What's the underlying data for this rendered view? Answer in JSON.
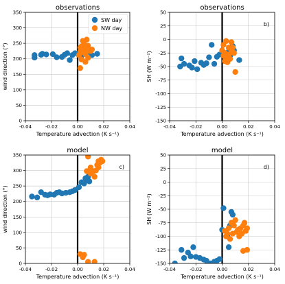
{
  "colors": {
    "sw": "#1f77b4",
    "nw": "#ff7f0e",
    "grid": "#c8c8c8",
    "zero_line": "#000000"
  },
  "chart_data": [
    {
      "type": "scatter",
      "title": "observations",
      "panel_label": "",
      "xlabel": "Temperature advection (K s⁻¹)",
      "ylabel": "wind direction (°)",
      "xlim": [
        -0.04,
        0.04
      ],
      "ylim": [
        0,
        350
      ],
      "xticks": [
        -0.04,
        -0.02,
        0.0,
        0.02,
        0.04
      ],
      "xtick_labels": [
        "-0.04",
        "-0.02",
        "0.00",
        "0.02",
        "0.04"
      ],
      "yticks": [
        0,
        50,
        100,
        150,
        200,
        250,
        300,
        350
      ],
      "ytick_labels": [
        "0",
        "50",
        "100",
        "150",
        "200",
        "250",
        "300",
        "350"
      ],
      "grid": true,
      "legend": {
        "placement": "top-right",
        "entries": [
          "SW day",
          "NW day"
        ]
      },
      "series": [
        {
          "name": "SW day",
          "color_key": "sw",
          "points": [
            [
              -0.033,
              204
            ],
            [
              -0.033,
              212
            ],
            [
              -0.028,
              213
            ],
            [
              -0.027,
              216
            ],
            [
              -0.024,
              214
            ],
            [
              -0.019,
              215
            ],
            [
              -0.016,
              205
            ],
            [
              -0.012,
              206
            ],
            [
              -0.01,
              213
            ],
            [
              -0.008,
              218
            ],
            [
              -0.006,
              196
            ],
            [
              -0.004,
              212
            ],
            [
              -0.002,
              218
            ],
            [
              0.001,
              212
            ],
            [
              0.003,
              208
            ],
            [
              0.004,
              220
            ],
            [
              0.006,
              218
            ],
            [
              0.008,
              222
            ],
            [
              0.01,
              228
            ],
            [
              0.011,
              212
            ],
            [
              0.015,
              216
            ]
          ]
        },
        {
          "name": "NW day",
          "color_key": "nw",
          "points": [
            [
              0.001,
              212
            ],
            [
              0.002,
              225
            ],
            [
              0.002,
              236
            ],
            [
              0.003,
              240
            ],
            [
              0.003,
              198
            ],
            [
              0.004,
              222
            ],
            [
              0.004,
              258
            ],
            [
              0.005,
              238
            ],
            [
              0.005,
              247
            ],
            [
              0.006,
              228
            ],
            [
              0.006,
              215
            ],
            [
              0.007,
              262
            ],
            [
              0.007,
              235
            ],
            [
              0.008,
              242
            ],
            [
              0.008,
              203
            ],
            [
              0.009,
              226
            ],
            [
              0.002,
              170
            ],
            [
              0.01,
              225
            ],
            [
              0.011,
              230
            ],
            [
              0.006,
              190
            ]
          ]
        }
      ]
    },
    {
      "type": "scatter",
      "title": "observations",
      "panel_label": "b)",
      "xlabel": "Temperature advection (K s⁻¹)",
      "ylabel": "SH (W m⁻²)",
      "xlim": [
        -0.04,
        0.04
      ],
      "ylim": [
        -150,
        50
      ],
      "xticks": [
        -0.04,
        -0.02,
        0.0,
        0.02,
        0.04
      ],
      "xtick_labels": [
        "-0.04",
        "-0.02",
        "0.00",
        "0.02",
        "0.04"
      ],
      "yticks": [
        -150,
        -125,
        -100,
        -75,
        -50,
        -25,
        0,
        25,
        50
      ],
      "ytick_labels": [
        "-150",
        "-125",
        "-100",
        "-75",
        "-50",
        "-25",
        "0",
        "25",
        "50"
      ],
      "grid": true,
      "series": [
        {
          "name": "SW day",
          "color_key": "sw",
          "points": [
            [
              -0.032,
              -50
            ],
            [
              -0.031,
              -35
            ],
            [
              -0.029,
              -45
            ],
            [
              -0.025,
              -48
            ],
            [
              -0.023,
              -52
            ],
            [
              -0.021,
              -40
            ],
            [
              -0.019,
              -55
            ],
            [
              -0.016,
              -43
            ],
            [
              -0.014,
              -47
            ],
            [
              -0.012,
              -44
            ],
            [
              -0.01,
              -33
            ],
            [
              -0.008,
              -10
            ],
            [
              -0.006,
              -45
            ],
            [
              -0.004,
              -32
            ],
            [
              -0.002,
              -28
            ],
            [
              0.003,
              -26
            ],
            [
              0.005,
              -22
            ],
            [
              0.006,
              -30
            ],
            [
              0.008,
              -12
            ],
            [
              0.009,
              -20
            ],
            [
              0.013,
              -38
            ]
          ]
        },
        {
          "name": "NW day",
          "color_key": "nw",
          "points": [
            [
              0.0,
              -20
            ],
            [
              0.001,
              -30
            ],
            [
              0.001,
              -10
            ],
            [
              0.002,
              -40
            ],
            [
              0.002,
              -25
            ],
            [
              0.003,
              -35
            ],
            [
              0.003,
              -3
            ],
            [
              0.004,
              -42
            ],
            [
              0.005,
              -15
            ],
            [
              0.005,
              -28
            ],
            [
              0.006,
              -36
            ],
            [
              0.007,
              -20
            ],
            [
              0.007,
              -5
            ],
            [
              0.008,
              -15
            ],
            [
              0.009,
              -25
            ],
            [
              0.01,
              -60
            ]
          ]
        }
      ]
    },
    {
      "type": "scatter",
      "title": "model",
      "panel_label": "c)",
      "xlabel": "Temperature advection (K s⁻¹)",
      "ylabel": "wind direction (°)",
      "xlim": [
        -0.04,
        0.04
      ],
      "ylim": [
        0,
        350
      ],
      "xticks": [
        -0.04,
        -0.02,
        0.0,
        0.02,
        0.04
      ],
      "xtick_labels": [
        "-0.04",
        "-0.02",
        "0.00",
        "0.02",
        "0.04"
      ],
      "yticks": [
        0,
        50,
        100,
        150,
        200,
        250,
        300,
        350
      ],
      "ytick_labels": [
        "0",
        "50",
        "100",
        "150",
        "200",
        "250",
        "300",
        "350"
      ],
      "grid": true,
      "series": [
        {
          "name": "SW day",
          "color_key": "sw",
          "points": [
            [
              -0.035,
              216
            ],
            [
              -0.031,
              213
            ],
            [
              -0.028,
              230
            ],
            [
              -0.025,
              222
            ],
            [
              -0.023,
              220
            ],
            [
              -0.021,
              223
            ],
            [
              -0.018,
              222
            ],
            [
              -0.016,
              228
            ],
            [
              -0.014,
              230
            ],
            [
              -0.012,
              226
            ],
            [
              -0.009,
              228
            ],
            [
              -0.006,
              230
            ],
            [
              -0.004,
              233
            ],
            [
              -0.002,
              237
            ],
            [
              0.001,
              246
            ],
            [
              0.003,
              262
            ],
            [
              0.005,
              258
            ],
            [
              0.006,
              275
            ],
            [
              0.007,
              268
            ],
            [
              0.008,
              280
            ],
            [
              0.009,
              265
            ]
          ]
        },
        {
          "name": "NW day",
          "color_key": "nw",
          "points": [
            [
              0.007,
              298
            ],
            [
              0.008,
              345
            ],
            [
              0.009,
              300
            ],
            [
              0.01,
              290
            ],
            [
              0.01,
              310
            ],
            [
              0.012,
              298
            ],
            [
              0.013,
              280
            ],
            [
              0.014,
              300
            ],
            [
              0.015,
              318
            ],
            [
              0.016,
              330
            ],
            [
              0.017,
              325
            ],
            [
              0.018,
              335
            ],
            [
              0.019,
              330
            ],
            [
              0.016,
              310
            ],
            [
              0.002,
              30
            ],
            [
              0.004,
              20
            ],
            [
              0.005,
              28
            ],
            [
              0.008,
              5
            ],
            [
              0.013,
              5
            ]
          ]
        }
      ]
    },
    {
      "type": "scatter",
      "title": "model",
      "panel_label": "d)",
      "xlabel": "Temperature advection (K s⁻¹)",
      "ylabel": "SH (W m⁻²)",
      "xlim": [
        -0.04,
        0.04
      ],
      "ylim": [
        -150,
        50
      ],
      "xticks": [
        -0.04,
        -0.02,
        0.0,
        0.02,
        0.04
      ],
      "xtick_labels": [
        "-0.04",
        "-0.02",
        "0.00",
        "0.02",
        "0.04"
      ],
      "yticks": [
        -150,
        -125,
        -100,
        -75,
        -50,
        -25,
        0,
        25,
        50
      ],
      "ytick_labels": [
        "-150",
        "-125",
        "-100",
        "-75",
        "-50",
        "-25",
        "0",
        "25",
        "50"
      ],
      "grid": true,
      "series": [
        {
          "name": "SW day",
          "color_key": "sw",
          "points": [
            [
              -0.036,
              -150
            ],
            [
              -0.031,
              -125
            ],
            [
              -0.029,
              -140
            ],
            [
              -0.026,
              -130
            ],
            [
              -0.024,
              -137
            ],
            [
              -0.022,
              -120
            ],
            [
              -0.02,
              -138
            ],
            [
              -0.017,
              -140
            ],
            [
              -0.014,
              -143
            ],
            [
              -0.012,
              -145
            ],
            [
              -0.009,
              -150
            ],
            [
              -0.006,
              -147
            ],
            [
              -0.004,
              -145
            ],
            [
              -0.002,
              -142
            ],
            [
              0.0,
              -88
            ],
            [
              0.001,
              -48
            ],
            [
              0.004,
              -100
            ],
            [
              0.006,
              -80
            ],
            [
              0.007,
              -55
            ],
            [
              0.008,
              -60
            ],
            [
              0.005,
              -120
            ]
          ]
        },
        {
          "name": "NW day",
          "color_key": "nw",
          "points": [
            [
              0.002,
              -90
            ],
            [
              0.003,
              -100
            ],
            [
              0.004,
              -95
            ],
            [
              0.005,
              -85
            ],
            [
              0.006,
              -105
            ],
            [
              0.007,
              -75
            ],
            [
              0.008,
              -95
            ],
            [
              0.009,
              -80
            ],
            [
              0.01,
              -70
            ],
            [
              0.011,
              -92
            ],
            [
              0.012,
              -88
            ],
            [
              0.013,
              -100
            ],
            [
              0.014,
              -85
            ],
            [
              0.015,
              -95
            ],
            [
              0.016,
              -80
            ],
            [
              0.017,
              -75
            ],
            [
              0.018,
              -90
            ],
            [
              0.019,
              -85
            ],
            [
              0.016,
              -127
            ],
            [
              0.019,
              -125
            ]
          ]
        }
      ]
    }
  ]
}
